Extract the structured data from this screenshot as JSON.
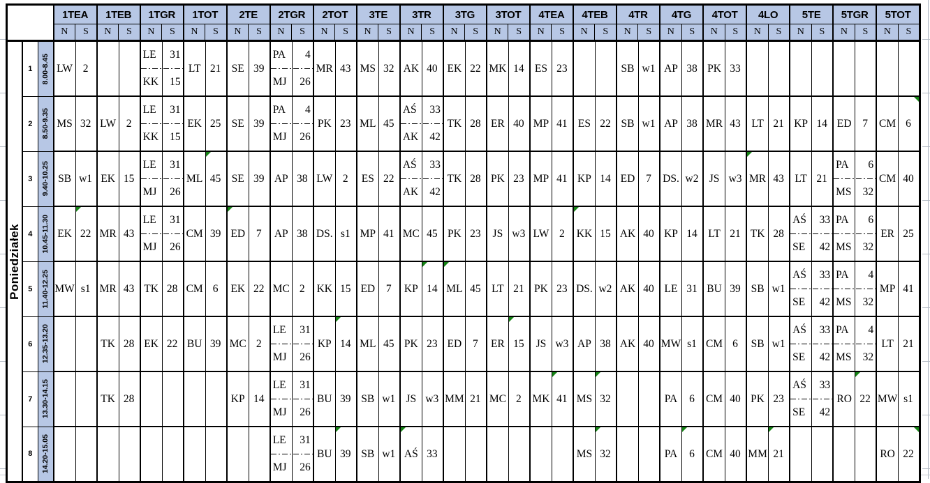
{
  "day": "Poniedziałek",
  "sub_columns": [
    "N",
    "S"
  ],
  "columns": [
    {
      "label": "1TEA"
    },
    {
      "label": "1TEB"
    },
    {
      "label": "1TGR"
    },
    {
      "label": "1TOT"
    },
    {
      "label": "2TE"
    },
    {
      "label": "2TGR"
    },
    {
      "label": "2TOT"
    },
    {
      "label": "3TE"
    },
    {
      "label": "3TR"
    },
    {
      "label": "3TG"
    },
    {
      "label": "3TOT"
    },
    {
      "label": "4TEA"
    },
    {
      "label": "4TEB"
    },
    {
      "label": "4TR"
    },
    {
      "label": "4TG"
    },
    {
      "label": "4TOT"
    },
    {
      "label": "4LO"
    },
    {
      "label": "5TE"
    },
    {
      "label": "5TGR"
    },
    {
      "label": "5TOT"
    }
  ],
  "rows": [
    {
      "num": "1",
      "time": "8.00-8.45",
      "cells": [
        {
          "n": "LW",
          "s": "2"
        },
        {},
        {
          "split": [
            [
              "LE",
              "31"
            ],
            [
              "KK",
              "15"
            ]
          ]
        },
        {
          "n": "LT",
          "s": "21"
        },
        {
          "n": "SE",
          "s": "39"
        },
        {
          "split": [
            [
              "PA",
              "4"
            ],
            [
              "MJ",
              "26"
            ]
          ]
        },
        {
          "n": "MR",
          "s": "43"
        },
        {
          "n": "MS",
          "s": "32"
        },
        {
          "n": "AK",
          "s": "40"
        },
        {
          "n": "EK",
          "s": "22"
        },
        {
          "n": "MK",
          "s": "14"
        },
        {
          "n": "ES",
          "s": "23"
        },
        {},
        {
          "n": "SB",
          "s": "w1"
        },
        {
          "n": "AP",
          "s": "38"
        },
        {
          "n": "PK",
          "s": "33"
        },
        {},
        {},
        {},
        {}
      ]
    },
    {
      "num": "2",
      "time": "8.50-9.35",
      "cells": [
        {
          "n": "MS",
          "s": "32"
        },
        {
          "n": "LW",
          "s": "2"
        },
        {
          "split": [
            [
              "LE",
              "31"
            ],
            [
              "KK",
              "15"
            ]
          ]
        },
        {
          "n": "EK",
          "s": "25"
        },
        {
          "n": "SE",
          "s": "39"
        },
        {
          "split": [
            [
              "PA",
              "4"
            ],
            [
              "MJ",
              "26"
            ]
          ]
        },
        {
          "n": "PK",
          "s": "23"
        },
        {
          "n": "ML",
          "s": "45"
        },
        {
          "split": [
            [
              "AŚ",
              "33"
            ],
            [
              "AK",
              "42"
            ]
          ]
        },
        {
          "n": "TK",
          "s": "28"
        },
        {
          "n": "ER",
          "s": "40"
        },
        {
          "n": "MP",
          "s": "41"
        },
        {
          "n": "ES",
          "s": "22"
        },
        {
          "n": "SB",
          "s": "w1"
        },
        {
          "n": "AP",
          "s": "38"
        },
        {
          "n": "MR",
          "s": "43"
        },
        {
          "n": "LT",
          "s": "21"
        },
        {
          "n": "KP",
          "s": "14"
        },
        {
          "n": "ED",
          "s": "7"
        },
        {
          "n": "CM",
          "s": "6",
          "tri": "sr"
        }
      ]
    },
    {
      "num": "3",
      "time": "9.40-10.25",
      "cells": [
        {
          "n": "SB",
          "s": "w1"
        },
        {
          "n": "EK",
          "s": "15"
        },
        {
          "split": [
            [
              "LE",
              "31"
            ],
            [
              "MJ",
              "26"
            ]
          ]
        },
        {
          "n": "ML",
          "s": "45",
          "tri": "s"
        },
        {
          "n": "SE",
          "s": "39"
        },
        {
          "n": "AP",
          "s": "38"
        },
        {
          "n": "LW",
          "s": "2"
        },
        {
          "n": "ES",
          "s": "22"
        },
        {
          "split": [
            [
              "AŚ",
              "33"
            ],
            [
              "AK",
              "42"
            ]
          ]
        },
        {
          "n": "TK",
          "s": "28"
        },
        {
          "n": "PK",
          "s": "23"
        },
        {
          "n": "MP",
          "s": "41"
        },
        {
          "n": "KP",
          "s": "14"
        },
        {
          "n": "ED",
          "s": "7"
        },
        {
          "n": "DS.",
          "s": "w2"
        },
        {
          "n": "JS",
          "s": "w3"
        },
        {
          "n": "MR",
          "s": "43",
          "tri": "n"
        },
        {
          "n": "LT",
          "s": "21"
        },
        {
          "split": [
            [
              "PA",
              "6"
            ],
            [
              "MS",
              "32"
            ]
          ]
        },
        {
          "n": "CM",
          "s": "40"
        }
      ]
    },
    {
      "num": "4",
      "time": "10.45-11.30",
      "cells": [
        {
          "n": "EK",
          "s": "22",
          "tri": "s"
        },
        {
          "n": "MR",
          "s": "43"
        },
        {
          "split": [
            [
              "LE",
              "31"
            ],
            [
              "MJ",
              "26"
            ]
          ]
        },
        {
          "n": "CM",
          "s": "39"
        },
        {
          "n": "ED",
          "s": "7",
          "tri": "n"
        },
        {
          "n": "AP",
          "s": "38"
        },
        {
          "n": "DS.",
          "s": "s1"
        },
        {
          "n": "MP",
          "s": "41"
        },
        {
          "n": "MC",
          "s": "45"
        },
        {
          "n": "PK",
          "s": "23"
        },
        {
          "n": "JS",
          "s": "w3"
        },
        {
          "n": "LW",
          "s": "2"
        },
        {
          "n": "KK",
          "s": "15",
          "tri": "n"
        },
        {
          "n": "AK",
          "s": "40"
        },
        {
          "n": "KP",
          "s": "14"
        },
        {
          "n": "LT",
          "s": "21"
        },
        {
          "n": "TK",
          "s": "28"
        },
        {
          "split": [
            [
              "AŚ",
              "33"
            ],
            [
              "SE",
              "42"
            ]
          ]
        },
        {
          "split": [
            [
              "PA",
              "6"
            ],
            [
              "MS",
              "32"
            ]
          ]
        },
        {
          "n": "ER",
          "s": "25"
        }
      ]
    },
    {
      "num": "5",
      "time": "11.40-12.25",
      "cells": [
        {
          "n": "MW",
          "s": "s1"
        },
        {
          "n": "MR",
          "s": "43"
        },
        {
          "n": "TK",
          "s": "28"
        },
        {
          "n": "CM",
          "s": "6"
        },
        {
          "n": "EK",
          "s": "22"
        },
        {
          "n": "MC",
          "s": "2"
        },
        {
          "n": "KK",
          "s": "15"
        },
        {
          "n": "ED",
          "s": "7"
        },
        {
          "n": "KP",
          "s": "14",
          "tri": "s"
        },
        {
          "n": "ML",
          "s": "45",
          "tri": "n"
        },
        {
          "n": "LT",
          "s": "21"
        },
        {
          "n": "PK",
          "s": "23"
        },
        {
          "n": "DS.",
          "s": "w2"
        },
        {
          "n": "AK",
          "s": "40"
        },
        {
          "n": "LE",
          "s": "31"
        },
        {
          "n": "BU",
          "s": "39"
        },
        {
          "n": "SB",
          "s": "w1"
        },
        {
          "split": [
            [
              "AŚ",
              "33"
            ],
            [
              "SE",
              "42"
            ]
          ]
        },
        {
          "split": [
            [
              "PA",
              "4"
            ],
            [
              "MS",
              "32"
            ]
          ]
        },
        {
          "n": "MP",
          "s": "41"
        }
      ]
    },
    {
      "num": "6",
      "time": "12.35-13.20",
      "cells": [
        {},
        {
          "n": "TK",
          "s": "28"
        },
        {
          "n": "EK",
          "s": "22"
        },
        {
          "n": "BU",
          "s": "39"
        },
        {
          "n": "MC",
          "s": "2"
        },
        {
          "split": [
            [
              "LE",
              "31"
            ],
            [
              "MJ",
              "26"
            ]
          ]
        },
        {
          "n": "KP",
          "s": "14",
          "tri": "s"
        },
        {
          "n": "ML",
          "s": "45"
        },
        {
          "n": "PK",
          "s": "23"
        },
        {
          "n": "ED",
          "s": "7"
        },
        {
          "n": "ER",
          "s": "15",
          "tri": "s"
        },
        {
          "n": "JS",
          "s": "w3"
        },
        {
          "n": "AP",
          "s": "38"
        },
        {
          "n": "AK",
          "s": "40"
        },
        {
          "n": "MW",
          "s": "s1"
        },
        {
          "n": "CM",
          "s": "6"
        },
        {
          "n": "SB",
          "s": "w1"
        },
        {
          "split": [
            [
              "AŚ",
              "33"
            ],
            [
              "SE",
              "42"
            ]
          ]
        },
        {
          "split": [
            [
              "PA",
              "4"
            ],
            [
              "MS",
              "32"
            ]
          ]
        },
        {
          "n": "LT",
          "s": "21"
        }
      ]
    },
    {
      "num": "7",
      "time": "13.30-14.15",
      "cells": [
        {},
        {
          "n": "TK",
          "s": "28"
        },
        {},
        {},
        {
          "n": "KP",
          "s": "14"
        },
        {
          "split": [
            [
              "LE",
              "31"
            ],
            [
              "MJ",
              "26"
            ]
          ]
        },
        {
          "n": "BU",
          "s": "39"
        },
        {
          "n": "SB",
          "s": "w1"
        },
        {
          "n": "JS",
          "s": "w3"
        },
        {
          "n": "MM",
          "s": "21"
        },
        {
          "n": "MC",
          "s": "2"
        },
        {
          "n": "MK",
          "s": "41",
          "tri": "s"
        },
        {
          "n": "MS",
          "s": "32",
          "tri": "s"
        },
        {},
        {
          "n": "PA",
          "s": "6"
        },
        {
          "n": "CM",
          "s": "40"
        },
        {
          "n": "PK",
          "s": "23"
        },
        {
          "split": [
            [
              "AŚ",
              "33"
            ],
            [
              "SE",
              "42"
            ]
          ]
        },
        {
          "n": "RO",
          "s": "22",
          "tri": "s"
        },
        {
          "n": "MW",
          "s": "s1"
        }
      ]
    },
    {
      "num": "8",
      "time": "14.20-15.05",
      "cells": [
        {},
        {},
        {},
        {},
        {},
        {
          "split": [
            [
              "LE",
              "31"
            ],
            [
              "MJ",
              "26"
            ]
          ]
        },
        {
          "n": "BU",
          "s": "39",
          "tri": "s"
        },
        {
          "n": "SB",
          "s": "w1"
        },
        {
          "n": "AŚ",
          "s": "33",
          "tri": "n"
        },
        {},
        {},
        {},
        {
          "n": "MS",
          "s": "32",
          "tri": "s"
        },
        {},
        {
          "n": "PA",
          "s": "6",
          "tri": "s"
        },
        {
          "n": "CM",
          "s": "40"
        },
        {
          "n": "MM",
          "s": "21",
          "tri": "s"
        },
        {},
        {},
        {
          "n": "RO",
          "s": "22",
          "tri": "sr"
        }
      ]
    }
  ],
  "colors": {
    "header_bg": "#b7c7e5",
    "grid_black": "#000000",
    "indicator_green": "#168316",
    "margin_gridline": "#aab2be"
  }
}
